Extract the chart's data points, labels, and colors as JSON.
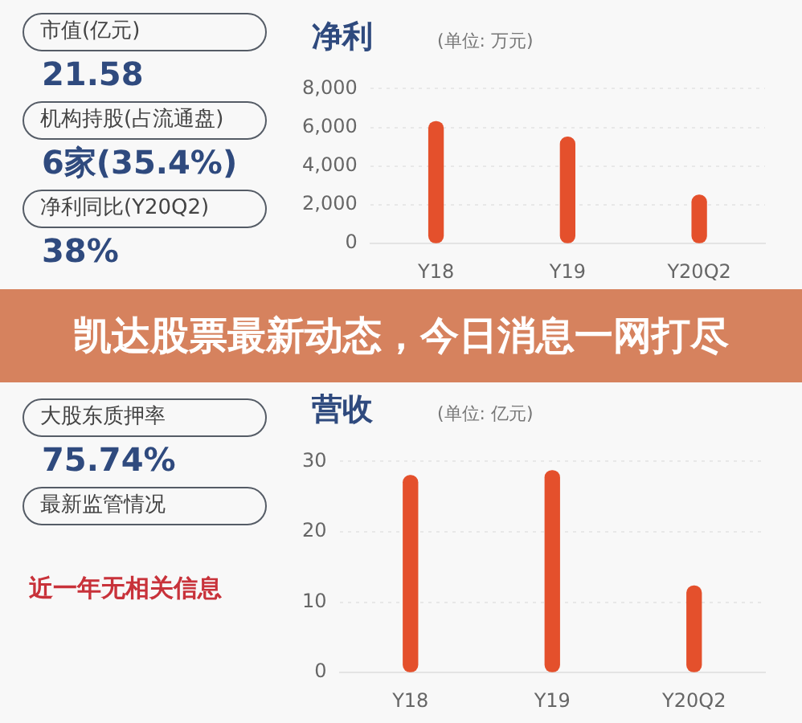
{
  "chart_data": [
    {
      "type": "other",
      "title": "凯达股票最新动态，今日消息一网打尽",
      "annotations": [
        "市值(亿元)",
        "21.58",
        "机构持股(占流通盘)",
        "6家(35.4%)",
        "净利同比(Y20Q2)",
        "38%",
        "大股东质押率",
        "75.74%",
        "最新监管情况",
        "近一年无相关信息"
      ]
    },
    {
      "type": "bar",
      "title": "净利",
      "subtitle": "(单位: 万元)",
      "categories": [
        "Y18",
        "Y19",
        "Y20Q2"
      ],
      "values": [
        6300,
        5500,
        2500
      ],
      "color": "#e4502c",
      "ylim": [
        0,
        8000
      ],
      "yticks": [
        0,
        {
          "value": 2000,
          "label": "2,000"
        },
        {
          "value": 4000,
          "label": "4,000"
        },
        {
          "value": 6000,
          "label": "6,000"
        },
        {
          "value": 8000,
          "label": "8,000"
        }
      ],
      "grid": "y"
    },
    {
      "type": "bar",
      "title": "营收",
      "subtitle": "(单位: 亿元)",
      "categories": [
        "Y18",
        "Y19",
        "Y20Q2"
      ],
      "values": [
        28,
        28.7,
        12.3
      ],
      "color": "#e4502c",
      "ylim": [
        0,
        30
      ],
      "yticks": [
        0,
        10,
        20,
        30
      ],
      "grid": "y"
    }
  ]
}
